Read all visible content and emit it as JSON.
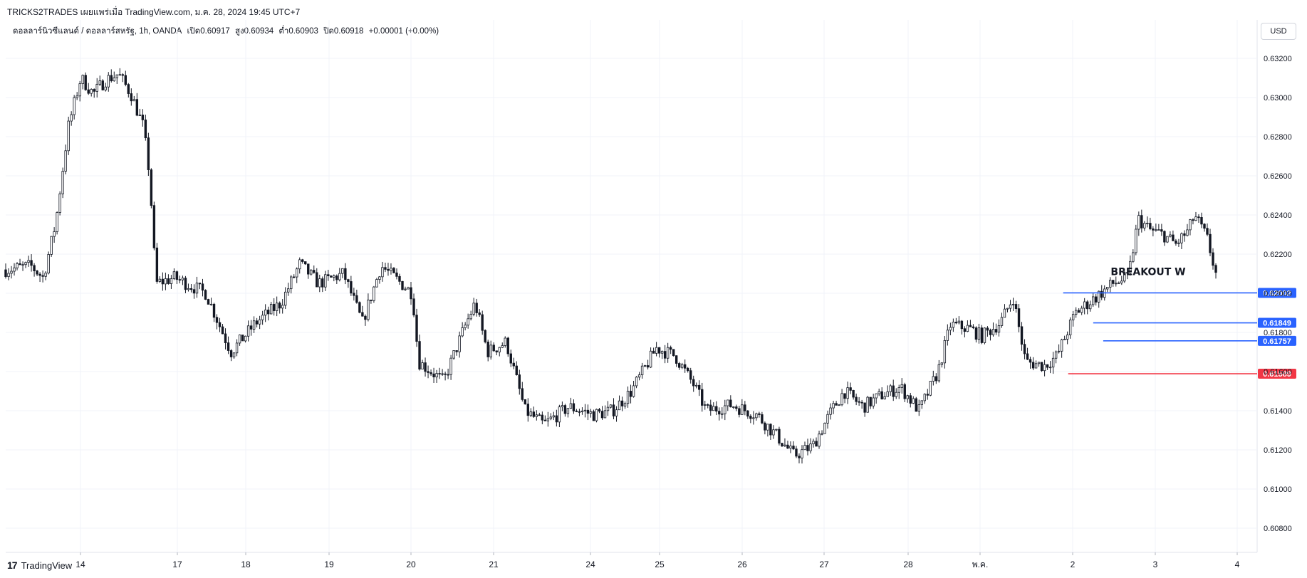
{
  "header": {
    "title": "TRICKS2TRADES เผยแพร่เมื่อ TradingView.com, ม.ค. 28, 2024 19:45 UTC+7"
  },
  "legend": {
    "symbol": "ดอลลาร์นิวซีแลนด์ / ดอลลาร์สหรัฐ, 1h, OANDA",
    "open": "เปิด0.60917",
    "high": "สูง0.60934",
    "low": "ต่ำ0.60903",
    "close": "ปิด0.60918",
    "change": "+0.00001 (+0.00%)"
  },
  "currency_button": "USD",
  "brand": {
    "logo": "17",
    "name": "TradingView"
  },
  "colors": {
    "candle": "#131722",
    "grid": "#f0f3fa",
    "level_blue": "#2962ff",
    "level_red": "#f23645",
    "axis_text": "#131722"
  },
  "chart_data": {
    "type": "candlestick",
    "instrument": "ดอลลาร์นิวซีแลนด์ / ดอลลาร์สหรัฐ",
    "timeframe": "1h",
    "ylim": [
      0.6076,
      0.6331
    ],
    "y_ticks": [
      "0.63200",
      "0.63000",
      "0.62800",
      "0.62600",
      "0.62400",
      "0.62200",
      "0.62000",
      "0.61800",
      "0.61600",
      "0.61400",
      "0.61200",
      "0.61000",
      "0.60800"
    ],
    "x_ticks": [
      "14",
      "17",
      "18",
      "19",
      "20",
      "21",
      "24",
      "25",
      "26",
      "27",
      "28",
      "พ.ค.",
      "2",
      "3",
      "4"
    ],
    "close_path": [
      [
        0.0,
        0.6212
      ],
      [
        0.02,
        0.6214
      ],
      [
        0.03,
        0.6208
      ],
      [
        0.04,
        0.6236
      ],
      [
        0.05,
        0.6285
      ],
      [
        0.06,
        0.631
      ],
      [
        0.07,
        0.6302
      ],
      [
        0.08,
        0.6309
      ],
      [
        0.09,
        0.6312
      ],
      [
        0.1,
        0.6302
      ],
      [
        0.11,
        0.6285
      ],
      [
        0.115,
        0.626
      ],
      [
        0.12,
        0.6205
      ],
      [
        0.135,
        0.6208
      ],
      [
        0.16,
        0.62
      ],
      [
        0.18,
        0.617
      ],
      [
        0.2,
        0.6185
      ],
      [
        0.22,
        0.6195
      ],
      [
        0.235,
        0.6215
      ],
      [
        0.25,
        0.6205
      ],
      [
        0.27,
        0.621
      ],
      [
        0.285,
        0.6185
      ],
      [
        0.3,
        0.6214
      ],
      [
        0.325,
        0.62
      ],
      [
        0.33,
        0.6165
      ],
      [
        0.35,
        0.6155
      ],
      [
        0.365,
        0.618
      ],
      [
        0.375,
        0.6195
      ],
      [
        0.385,
        0.617
      ],
      [
        0.4,
        0.6175
      ],
      [
        0.415,
        0.614
      ],
      [
        0.43,
        0.6133
      ],
      [
        0.45,
        0.6142
      ],
      [
        0.47,
        0.6138
      ],
      [
        0.485,
        0.614
      ],
      [
        0.5,
        0.615
      ],
      [
        0.52,
        0.6172
      ],
      [
        0.535,
        0.6168
      ],
      [
        0.55,
        0.6153
      ],
      [
        0.56,
        0.614
      ],
      [
        0.58,
        0.6143
      ],
      [
        0.6,
        0.6138
      ],
      [
        0.615,
        0.6128
      ],
      [
        0.63,
        0.6117
      ],
      [
        0.645,
        0.6122
      ],
      [
        0.66,
        0.614
      ],
      [
        0.67,
        0.615
      ],
      [
        0.685,
        0.6142
      ],
      [
        0.7,
        0.6148
      ],
      [
        0.715,
        0.6152
      ],
      [
        0.73,
        0.614
      ],
      [
        0.745,
        0.616
      ],
      [
        0.755,
        0.6184
      ],
      [
        0.77,
        0.6182
      ],
      [
        0.78,
        0.6178
      ],
      [
        0.795,
        0.6185
      ],
      [
        0.805,
        0.6198
      ],
      [
        0.815,
        0.6165
      ],
      [
        0.83,
        0.6163
      ],
      [
        0.84,
        0.6168
      ],
      [
        0.848,
        0.618
      ],
      [
        0.855,
        0.619
      ],
      [
        0.865,
        0.6195
      ],
      [
        0.875,
        0.62
      ],
      [
        0.885,
        0.6205
      ],
      [
        0.897,
        0.6208
      ],
      [
        0.905,
        0.6238
      ],
      [
        0.915,
        0.6232
      ],
      [
        0.925,
        0.623
      ],
      [
        0.935,
        0.6225
      ],
      [
        0.945,
        0.6232
      ],
      [
        0.95,
        0.624
      ],
      [
        0.96,
        0.6228
      ],
      [
        0.967,
        0.621
      ]
    ],
    "levels": [
      {
        "label": "0.62002",
        "value": 0.62002,
        "color": "#2962ff",
        "start": 0.845
      },
      {
        "label": "0.61849",
        "value": 0.61849,
        "color": "#2962ff",
        "start": 0.869
      },
      {
        "label": "0.61757",
        "value": 0.61757,
        "color": "#2962ff",
        "start": 0.877
      },
      {
        "label": "0.61589",
        "value": 0.61589,
        "color": "#f23645",
        "start": 0.849
      }
    ],
    "annotations": [
      {
        "text": "BREAKOUT W",
        "value": 0.621,
        "x": 0.883
      }
    ]
  }
}
